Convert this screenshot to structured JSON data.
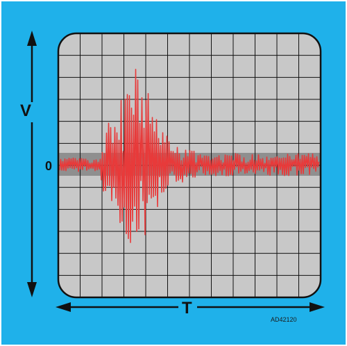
{
  "labels": {
    "vertical_axis": "V",
    "horizontal_axis": "T",
    "zero_level": "0",
    "figure_code": "AD42120"
  },
  "colors": {
    "background": "#1fb1ea",
    "screen": "#c8c8c8",
    "noise_band": "#8f8f8f",
    "grid": "#111111",
    "trace": "#e83a3a",
    "axis_arrows": "#111111"
  }
}
